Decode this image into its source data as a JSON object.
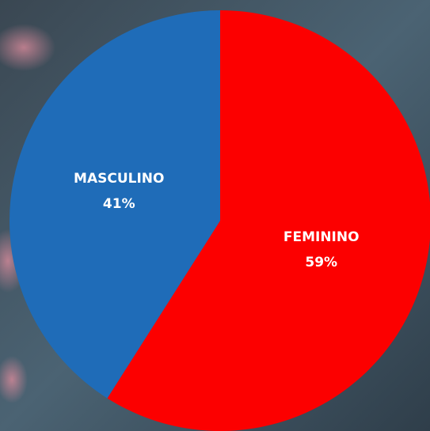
{
  "chart_data": {
    "type": "pie",
    "categories": [
      "FEMININO",
      "MASCULINO"
    ],
    "values": [
      59,
      41
    ],
    "value_labels": [
      "59%",
      "41%"
    ],
    "colors": [
      "#fc0000",
      "#1f6cb8"
    ]
  }
}
